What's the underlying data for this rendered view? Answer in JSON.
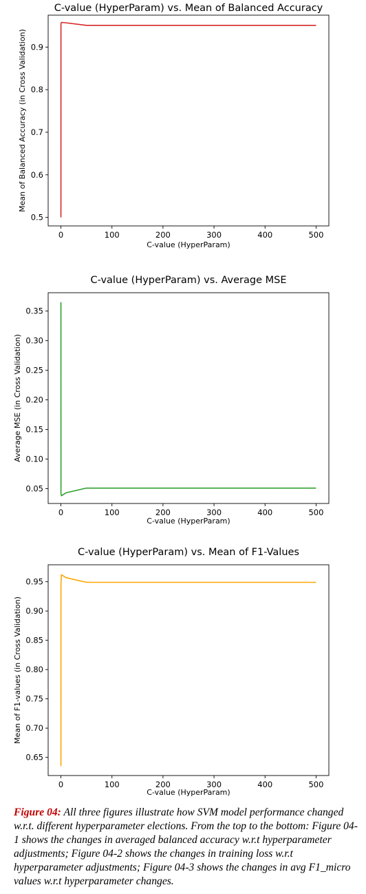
{
  "chart_data": [
    {
      "type": "line",
      "title": "C-value (HyperParam) vs. Mean of Balanced Accuracy",
      "xlabel": "C-value (HyperParam)",
      "ylabel": "Mean of Balanced Accuracy (in Cross Validation)",
      "color": "#d62728",
      "xlim": [
        -25,
        525
      ],
      "ylim": [
        0.48,
        0.975
      ],
      "xticks": [
        0,
        100,
        200,
        300,
        400,
        500
      ],
      "xtick_labels": [
        "0",
        "100",
        "200",
        "300",
        "400",
        "500"
      ],
      "yticks": [
        0.5,
        0.6,
        0.7,
        0.8,
        0.9
      ],
      "ytick_labels": [
        "0.5",
        "0.6",
        "0.7",
        "0.8",
        "0.9"
      ],
      "grid": false,
      "series": [
        {
          "x": [
            0.01,
            0.1,
            1,
            10,
            50,
            100,
            200,
            300,
            400,
            500
          ],
          "y": [
            0.5,
            0.955,
            0.958,
            0.957,
            0.951,
            0.951,
            0.951,
            0.951,
            0.951,
            0.951
          ]
        }
      ]
    },
    {
      "type": "line",
      "title": "C-value (HyperParam) vs. Average MSE",
      "xlabel": "C-value (HyperParam)",
      "ylabel": "Average MSE (in Cross Validation)",
      "color": "#2ca02c",
      "xlim": [
        -25,
        525
      ],
      "ylim": [
        0.025,
        0.381
      ],
      "xticks": [
        0,
        100,
        200,
        300,
        400,
        500
      ],
      "xtick_labels": [
        "0",
        "100",
        "200",
        "300",
        "400",
        "500"
      ],
      "yticks": [
        0.05,
        0.1,
        0.15,
        0.2,
        0.25,
        0.3,
        0.35
      ],
      "ytick_labels": [
        "0.05",
        "0.10",
        "0.15",
        "0.20",
        "0.25",
        "0.30",
        "0.35"
      ],
      "grid": false,
      "series": [
        {
          "x": [
            0.01,
            0.1,
            1,
            10,
            50,
            100,
            200,
            300,
            400,
            500
          ],
          "y": [
            0.365,
            0.042,
            0.038,
            0.043,
            0.051,
            0.051,
            0.051,
            0.051,
            0.051,
            0.051
          ]
        }
      ]
    },
    {
      "type": "line",
      "title": "C-value (HyperParam) vs. Mean of F1-Values",
      "xlabel": "C-value (HyperParam)",
      "ylabel": "Mean of F1-values (in Cross Validation)",
      "color": "#ffa500",
      "xlim": [
        -25,
        525
      ],
      "ylim": [
        0.619,
        0.979
      ],
      "xticks": [
        0,
        100,
        200,
        300,
        400,
        500
      ],
      "xtick_labels": [
        "0",
        "100",
        "200",
        "300",
        "400",
        "500"
      ],
      "yticks": [
        0.65,
        0.7,
        0.75,
        0.8,
        0.85,
        0.9,
        0.95
      ],
      "ytick_labels": [
        "0.65",
        "0.70",
        "0.75",
        "0.80",
        "0.85",
        "0.90",
        "0.95"
      ],
      "grid": false,
      "series": [
        {
          "x": [
            0.01,
            0.1,
            1,
            10,
            50,
            100,
            200,
            300,
            400,
            500
          ],
          "y": [
            0.635,
            0.945,
            0.962,
            0.957,
            0.949,
            0.949,
            0.949,
            0.949,
            0.949,
            0.949
          ]
        }
      ]
    }
  ],
  "caption": {
    "label": "Figure 04:",
    "text": " All three figures illustrate how SVM model performance changed w.r.t. different hyperparameter elections. From the top to the bottom: Figure 04-1 shows the changes in averaged balanced accuracy w.r.t hyperparameter adjustments; Figure 04-2 shows the changes in training loss w.r.t hyperparameter adjustments; Figure 04-3 shows the changes in avg F1_micro values w.r.t hyperparameter changes."
  }
}
